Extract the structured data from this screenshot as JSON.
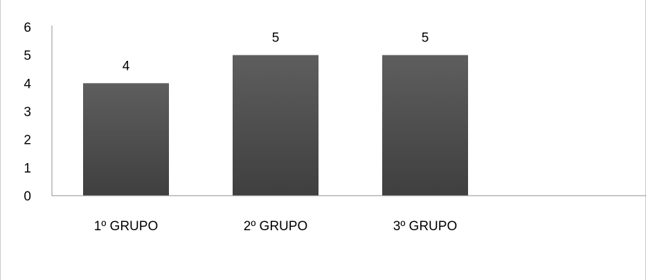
{
  "chart_data": {
    "type": "bar",
    "categories": [
      "1º GRUPO",
      "2º GRUPO",
      "3º GRUPO"
    ],
    "values": [
      4,
      5,
      5
    ],
    "data_labels": [
      "4",
      "5",
      "5"
    ],
    "y_ticks": [
      "0",
      "1",
      "2",
      "3",
      "4",
      "5",
      "6"
    ],
    "ylim": [
      0,
      6
    ],
    "title": "",
    "xlabel": "",
    "ylabel": "",
    "grid": false,
    "legend": "none",
    "bar_color_top": "#5e5e5e",
    "bar_color_bottom": "#3f3f3f",
    "axis_color": "#8c8c8c"
  }
}
